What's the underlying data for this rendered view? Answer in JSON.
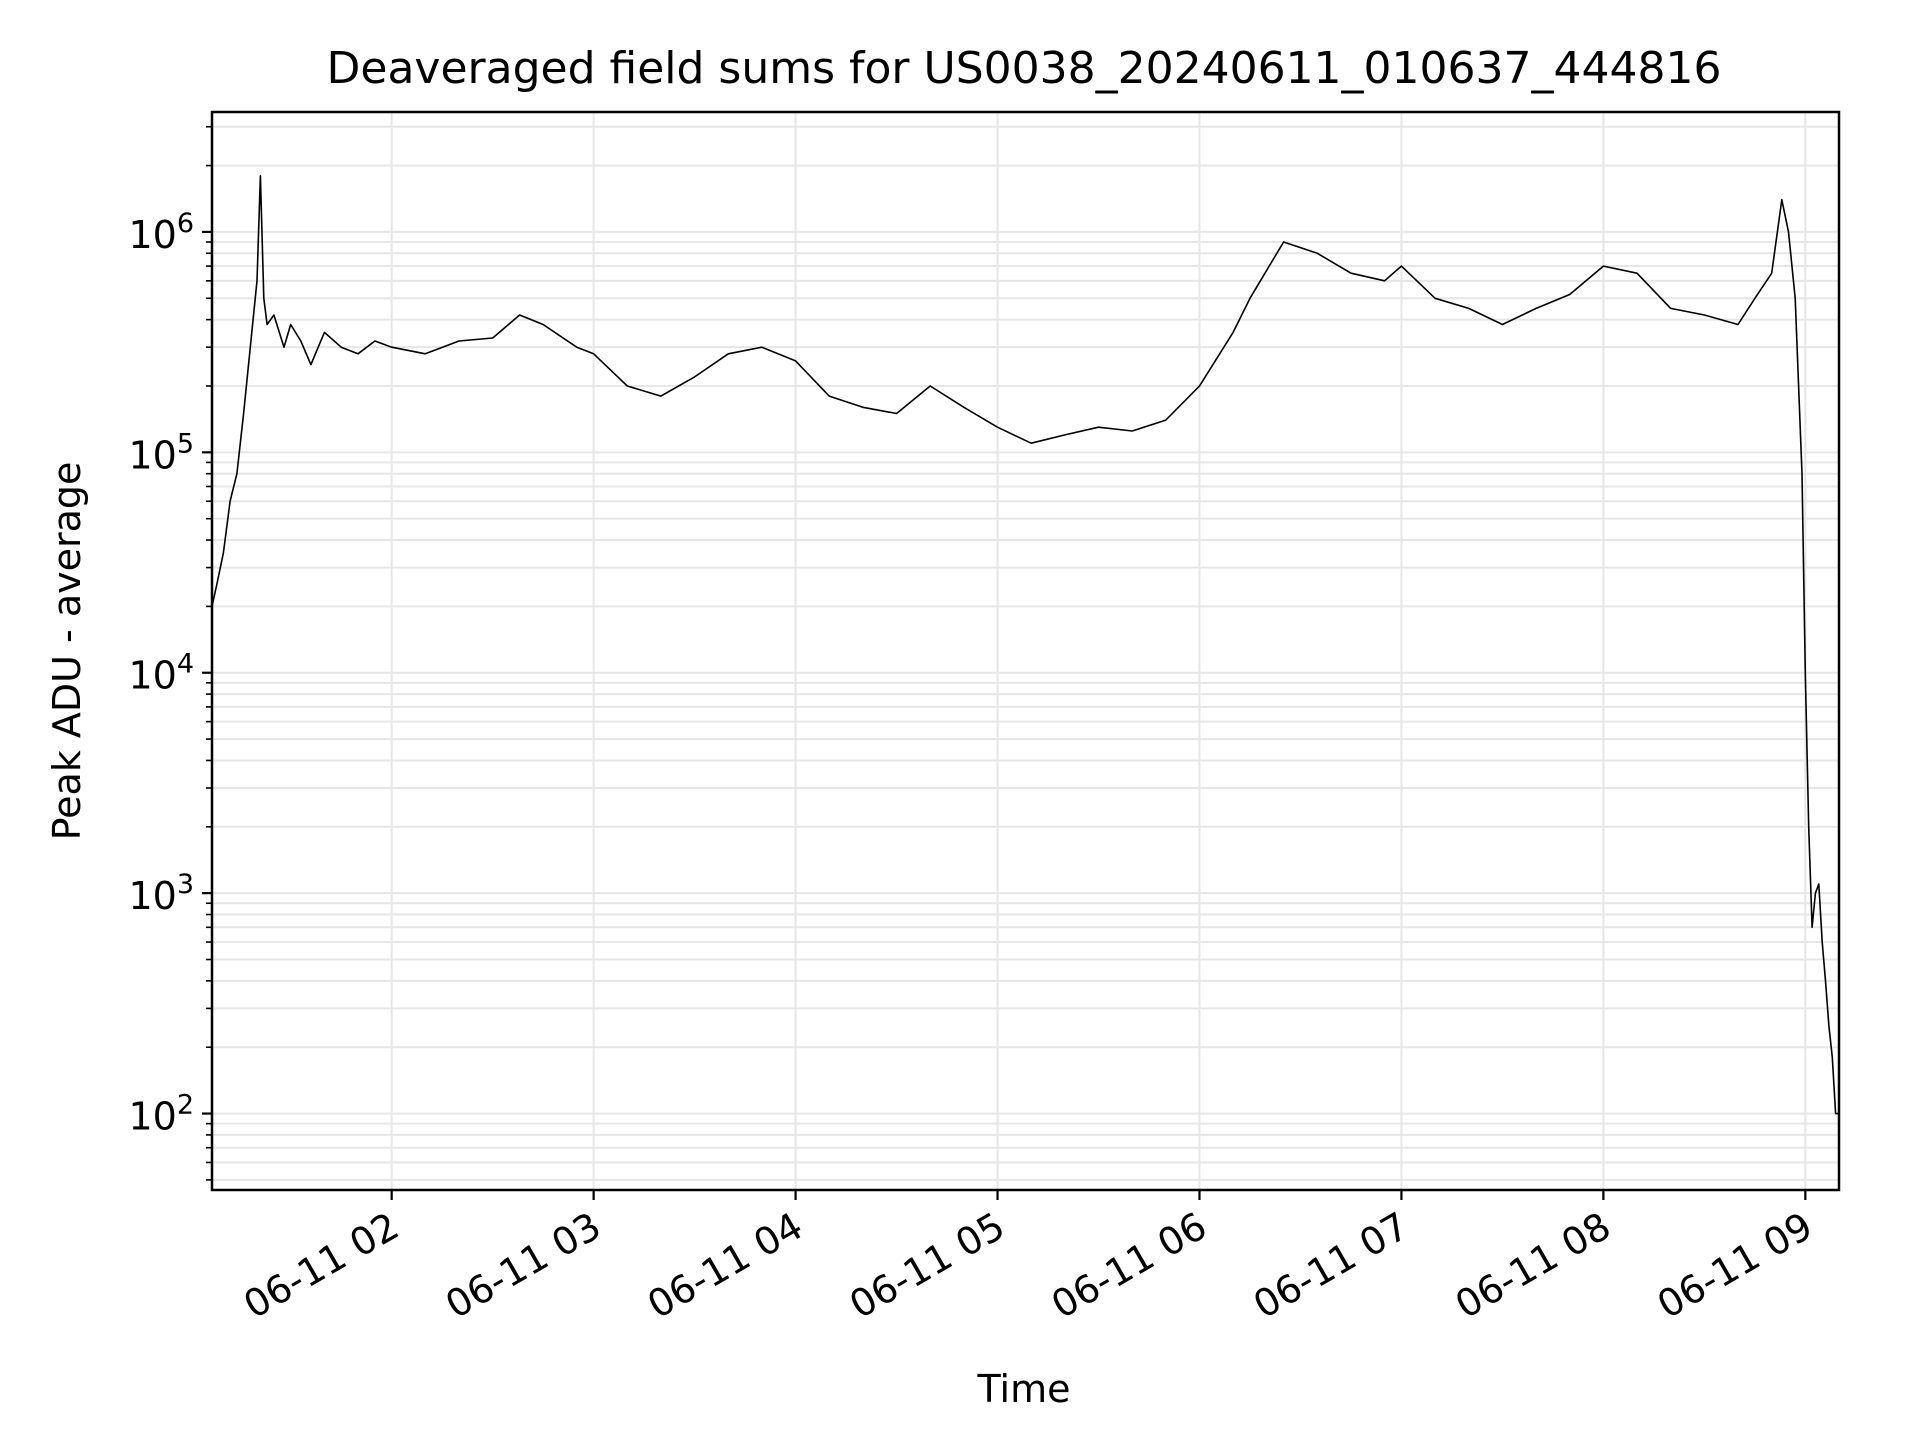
{
  "chart_data": {
    "type": "line",
    "title": "Deaveraged field sums for US0038_20240611_010637_444816",
    "xlabel": "Time",
    "ylabel": "Peak ADU - average",
    "y_scale": "log",
    "ylim": [
      45,
      3500000
    ],
    "xlim": [
      "2024-06-11 01:06:37",
      "2024-06-11 09:10:00"
    ],
    "grid": true,
    "line_color": "#000000",
    "grid_color": "#e6e6e6",
    "x_ticks": [
      {
        "value": "2024-06-11 02:00",
        "label": "06-11 02"
      },
      {
        "value": "2024-06-11 03:00",
        "label": "06-11 03"
      },
      {
        "value": "2024-06-11 04:00",
        "label": "06-11 04"
      },
      {
        "value": "2024-06-11 05:00",
        "label": "06-11 05"
      },
      {
        "value": "2024-06-11 06:00",
        "label": "06-11 06"
      },
      {
        "value": "2024-06-11 07:00",
        "label": "06-11 07"
      },
      {
        "value": "2024-06-11 08:00",
        "label": "06-11 08"
      },
      {
        "value": "2024-06-11 09:00",
        "label": "06-11 09"
      }
    ],
    "y_ticks": [
      {
        "value": 100,
        "base": "10",
        "exp": "2"
      },
      {
        "value": 1000,
        "base": "10",
        "exp": "3"
      },
      {
        "value": 10000,
        "base": "10",
        "exp": "4"
      },
      {
        "value": 100000,
        "base": "10",
        "exp": "5"
      },
      {
        "value": 1000000,
        "base": "10",
        "exp": "6"
      }
    ],
    "series": [
      {
        "x": [
          "2024-06-11 01:06:37",
          "2024-06-11 01:08:00",
          "2024-06-11 01:10:00",
          "2024-06-11 01:12:00",
          "2024-06-11 01:14:00",
          "2024-06-11 01:16:00",
          "2024-06-11 01:18:00",
          "2024-06-11 01:20:00",
          "2024-06-11 01:21:00",
          "2024-06-11 01:22:00",
          "2024-06-11 01:23:00",
          "2024-06-11 01:25:00",
          "2024-06-11 01:28:00",
          "2024-06-11 01:30:00",
          "2024-06-11 01:33:00",
          "2024-06-11 01:36:00",
          "2024-06-11 01:40:00",
          "2024-06-11 01:45:00",
          "2024-06-11 01:50:00",
          "2024-06-11 01:55:00",
          "2024-06-11 02:00:00",
          "2024-06-11 02:10:00",
          "2024-06-11 02:20:00",
          "2024-06-11 02:30:00",
          "2024-06-11 02:38:00",
          "2024-06-11 02:45:00",
          "2024-06-11 02:55:00",
          "2024-06-11 03:00:00",
          "2024-06-11 03:10:00",
          "2024-06-11 03:20:00",
          "2024-06-11 03:30:00",
          "2024-06-11 03:40:00",
          "2024-06-11 03:50:00",
          "2024-06-11 04:00:00",
          "2024-06-11 04:10:00",
          "2024-06-11 04:20:00",
          "2024-06-11 04:30:00",
          "2024-06-11 04:40:00",
          "2024-06-11 04:50:00",
          "2024-06-11 05:00:00",
          "2024-06-11 05:10:00",
          "2024-06-11 05:20:00",
          "2024-06-11 05:30:00",
          "2024-06-11 05:40:00",
          "2024-06-11 05:50:00",
          "2024-06-11 06:00:00",
          "2024-06-11 06:10:00",
          "2024-06-11 06:15:00",
          "2024-06-11 06:25:00",
          "2024-06-11 06:35:00",
          "2024-06-11 06:45:00",
          "2024-06-11 06:55:00",
          "2024-06-11 07:00:00",
          "2024-06-11 07:10:00",
          "2024-06-11 07:20:00",
          "2024-06-11 07:30:00",
          "2024-06-11 07:40:00",
          "2024-06-11 07:50:00",
          "2024-06-11 08:00:00",
          "2024-06-11 08:10:00",
          "2024-06-11 08:20:00",
          "2024-06-11 08:30:00",
          "2024-06-11 08:40:00",
          "2024-06-11 08:45:00",
          "2024-06-11 08:50:00",
          "2024-06-11 08:53:00",
          "2024-06-11 08:55:00",
          "2024-06-11 08:57:00",
          "2024-06-11 08:59:00",
          "2024-06-11 09:00:00",
          "2024-06-11 09:01:00",
          "2024-06-11 09:02:00",
          "2024-06-11 09:03:00",
          "2024-06-11 09:04:00",
          "2024-06-11 09:05:00",
          "2024-06-11 09:06:00",
          "2024-06-11 09:07:00",
          "2024-06-11 09:08:00",
          "2024-06-11 09:09:00",
          "2024-06-11 09:10:00"
        ],
        "y": [
          20000,
          25000,
          35000,
          60000,
          80000,
          150000,
          300000,
          600000,
          1800000,
          500000,
          380000,
          420000,
          300000,
          380000,
          320000,
          250000,
          350000,
          300000,
          280000,
          320000,
          300000,
          280000,
          320000,
          330000,
          420000,
          380000,
          300000,
          280000,
          200000,
          180000,
          220000,
          280000,
          300000,
          260000,
          180000,
          160000,
          150000,
          200000,
          160000,
          130000,
          110000,
          120000,
          130000,
          125000,
          140000,
          200000,
          350000,
          500000,
          900000,
          800000,
          650000,
          600000,
          700000,
          500000,
          450000,
          380000,
          450000,
          520000,
          700000,
          650000,
          450000,
          420000,
          380000,
          500000,
          650000,
          1400000,
          1000000,
          500000,
          80000,
          10000,
          2000,
          700,
          1000,
          1100,
          600,
          400,
          250,
          180,
          100,
          100
        ]
      }
    ]
  }
}
